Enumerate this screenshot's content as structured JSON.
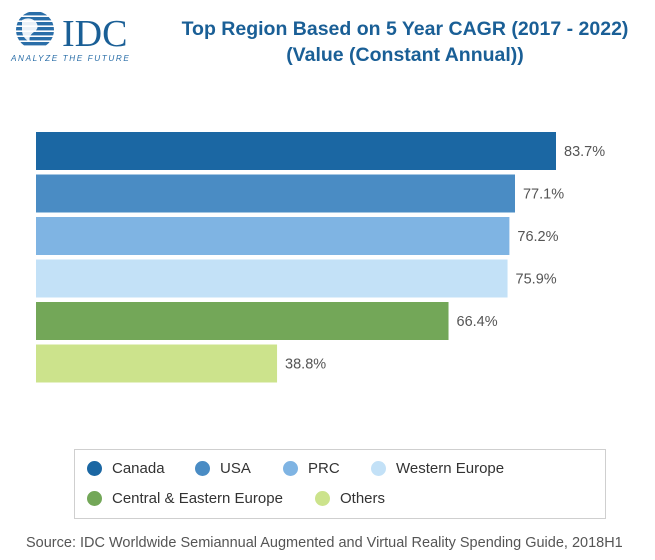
{
  "logo": {
    "text": "IDC",
    "tagline": "ANALYZE THE FUTURE",
    "color": "#1a5f96"
  },
  "title": {
    "line1": "Top Region Based on 5 Year CAGR (2017 - 2022)",
    "line2": "(Value (Constant Annual))"
  },
  "chart_data": {
    "type": "bar",
    "orientation": "horizontal",
    "title": "Top Region Based on 5 Year CAGR (2017 - 2022) (Value (Constant Annual))",
    "categories": [
      "Canada",
      "USA",
      "PRC",
      "Western Europe",
      "Central & Eastern Europe",
      "Others"
    ],
    "values": [
      83.7,
      77.1,
      76.2,
      75.9,
      66.4,
      38.8
    ],
    "labels": [
      "83.7%",
      "77.1%",
      "76.2%",
      "75.9%",
      "66.4%",
      "38.8%"
    ],
    "colors": [
      "#1b67a3",
      "#4a8cc4",
      "#7fb4e3",
      "#c3e1f7",
      "#73a758",
      "#cce38c"
    ],
    "xlim": [
      0,
      83.7
    ],
    "grid": false,
    "legend_position": "bottom"
  },
  "legend": {
    "items": [
      {
        "label": "Canada",
        "color": "#1b67a3"
      },
      {
        "label": "USA",
        "color": "#4a8cc4"
      },
      {
        "label": "PRC",
        "color": "#7fb4e3"
      },
      {
        "label": "Western Europe",
        "color": "#c3e1f7"
      },
      {
        "label": "Central & Eastern Europe",
        "color": "#73a758"
      },
      {
        "label": "Others",
        "color": "#cce38c"
      }
    ]
  },
  "source": "Source: IDC Worldwide Semiannual Augmented and Virtual Reality Spending Guide, 2018H1"
}
